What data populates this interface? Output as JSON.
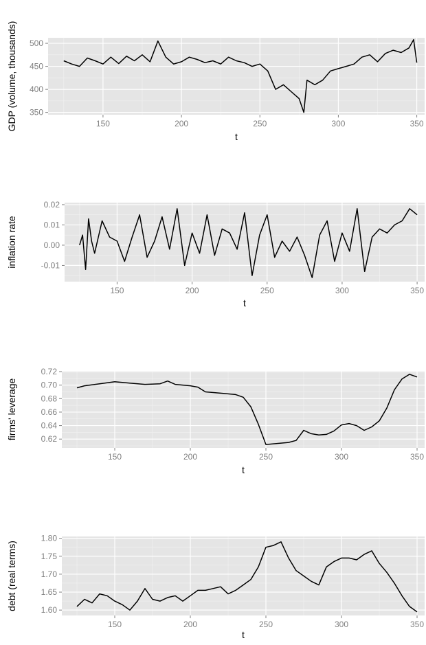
{
  "chart_data": [
    {
      "type": "line",
      "xlabel": "t",
      "ylabel": "GDP (volume, thousands)",
      "xlim": [
        115,
        355
      ],
      "ylim": [
        345,
        512
      ],
      "xticks": [
        150,
        200,
        250,
        300,
        350
      ],
      "yticks": [
        350,
        400,
        450,
        500
      ],
      "ytick_labels": [
        "350",
        "400",
        "450",
        "500"
      ],
      "grid": true,
      "x": [
        125,
        130,
        135,
        140,
        145,
        150,
        155,
        160,
        165,
        170,
        175,
        180,
        185,
        190,
        195,
        200,
        205,
        210,
        215,
        220,
        225,
        230,
        235,
        240,
        245,
        250,
        255,
        260,
        265,
        270,
        275,
        278,
        280,
        285,
        290,
        295,
        300,
        305,
        310,
        315,
        320,
        325,
        330,
        335,
        340,
        345,
        348,
        350
      ],
      "values": [
        462,
        455,
        450,
        468,
        462,
        455,
        470,
        456,
        472,
        462,
        475,
        460,
        505,
        470,
        455,
        460,
        470,
        465,
        458,
        462,
        455,
        470,
        462,
        458,
        450,
        455,
        440,
        400,
        410,
        395,
        380,
        350,
        420,
        410,
        420,
        440,
        445,
        450,
        455,
        470,
        475,
        460,
        478,
        485,
        480,
        490,
        508,
        458
      ]
    },
    {
      "type": "line",
      "xlabel": "t",
      "ylabel": "inflation rate",
      "xlim": [
        115,
        355
      ],
      "ylim": [
        -0.018,
        0.021
      ],
      "xticks": [
        150,
        200,
        250,
        300,
        350
      ],
      "yticks": [
        -0.01,
        0,
        0.01,
        0.02
      ],
      "ytick_labels": [
        "-0.01",
        "0.00",
        "0.01",
        "0.02"
      ],
      "grid": true,
      "x": [
        125,
        127,
        129,
        131,
        133,
        135,
        140,
        145,
        150,
        155,
        160,
        165,
        170,
        175,
        180,
        185,
        190,
        195,
        200,
        205,
        210,
        215,
        220,
        225,
        230,
        235,
        240,
        245,
        250,
        255,
        260,
        265,
        270,
        275,
        280,
        285,
        290,
        295,
        300,
        305,
        310,
        315,
        320,
        325,
        330,
        335,
        340,
        345,
        350
      ],
      "values": [
        0,
        0.005,
        -0.012,
        0.013,
        0.002,
        -0.004,
        0.012,
        0.004,
        0.002,
        -0.008,
        0.004,
        0.015,
        -0.006,
        0.002,
        0.014,
        -0.002,
        0.018,
        -0.01,
        0.006,
        -0.004,
        0.015,
        -0.005,
        0.008,
        0.006,
        -0.002,
        0.016,
        -0.015,
        0.005,
        0.015,
        -0.006,
        0.002,
        -0.003,
        0.004,
        -0.005,
        -0.016,
        0.005,
        0.012,
        -0.008,
        0.006,
        -0.003,
        0.018,
        -0.013,
        0.004,
        0.008,
        0.006,
        0.01,
        0.012,
        0.018,
        0.015
      ]
    },
    {
      "type": "line",
      "xlabel": "t",
      "ylabel": "firms' leverage",
      "xlim": [
        115,
        355
      ],
      "ylim": [
        0.607,
        0.721
      ],
      "xticks": [
        150,
        200,
        250,
        300,
        350
      ],
      "yticks": [
        0.62,
        0.64,
        0.66,
        0.68,
        0.7,
        0.72
      ],
      "ytick_labels": [
        "0.62",
        "0.64",
        "0.66",
        "0.68",
        "0.70",
        "0.72"
      ],
      "grid": true,
      "x": [
        125,
        130,
        140,
        150,
        160,
        170,
        180,
        185,
        190,
        200,
        205,
        210,
        220,
        230,
        235,
        240,
        245,
        250,
        255,
        260,
        265,
        270,
        275,
        280,
        285,
        290,
        295,
        300,
        305,
        310,
        315,
        320,
        325,
        330,
        335,
        340,
        345,
        350
      ],
      "values": [
        0.696,
        0.699,
        0.702,
        0.705,
        0.703,
        0.701,
        0.702,
        0.706,
        0.701,
        0.699,
        0.697,
        0.69,
        0.688,
        0.686,
        0.682,
        0.668,
        0.642,
        0.612,
        0.613,
        0.614,
        0.615,
        0.618,
        0.633,
        0.628,
        0.626,
        0.627,
        0.632,
        0.641,
        0.643,
        0.64,
        0.633,
        0.638,
        0.647,
        0.666,
        0.693,
        0.709,
        0.716,
        0.712
      ]
    },
    {
      "type": "line",
      "xlabel": "t",
      "ylabel": "debt (real terms)",
      "xlim": [
        115,
        355
      ],
      "ylim": [
        1.585,
        1.805
      ],
      "xticks": [
        150,
        200,
        250,
        300,
        350
      ],
      "yticks": [
        1.6,
        1.65,
        1.7,
        1.75,
        1.8
      ],
      "ytick_labels": [
        "1.60",
        "1.65",
        "1.70",
        "1.75",
        "1.80"
      ],
      "grid": true,
      "x": [
        125,
        130,
        135,
        140,
        145,
        150,
        155,
        160,
        165,
        170,
        175,
        180,
        185,
        190,
        195,
        200,
        205,
        210,
        215,
        220,
        225,
        230,
        235,
        240,
        245,
        250,
        255,
        260,
        265,
        270,
        275,
        280,
        285,
        290,
        295,
        300,
        305,
        310,
        315,
        320,
        325,
        330,
        335,
        340,
        345,
        350
      ],
      "values": [
        1.61,
        1.63,
        1.62,
        1.645,
        1.64,
        1.625,
        1.615,
        1.6,
        1.625,
        1.66,
        1.63,
        1.625,
        1.635,
        1.64,
        1.625,
        1.64,
        1.655,
        1.655,
        1.66,
        1.665,
        1.645,
        1.655,
        1.67,
        1.685,
        1.72,
        1.775,
        1.78,
        1.79,
        1.745,
        1.71,
        1.695,
        1.68,
        1.67,
        1.72,
        1.735,
        1.745,
        1.745,
        1.74,
        1.755,
        1.765,
        1.73,
        1.705,
        1.675,
        1.64,
        1.61,
        1.595
      ]
    }
  ]
}
